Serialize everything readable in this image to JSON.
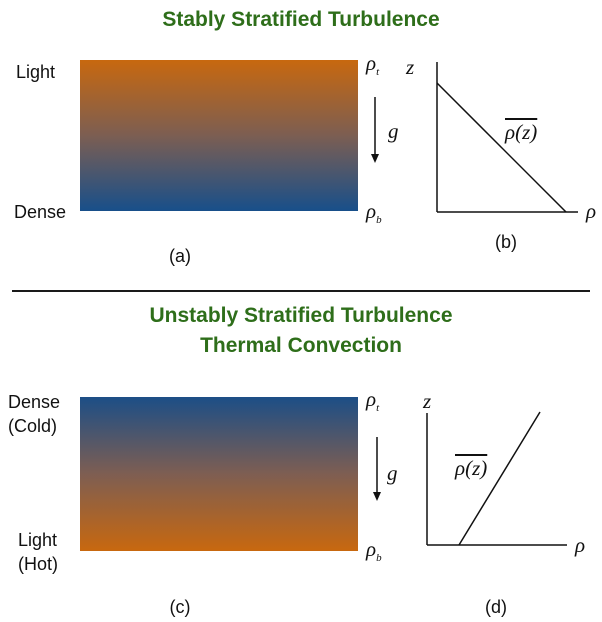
{
  "top_section": {
    "title": "Stably Stratified Turbulence",
    "box_top_label": "Light",
    "box_bottom_label": "Dense",
    "panel_a_label": "(a)",
    "panel_b_label": "(b)",
    "rho_top": "ρ",
    "rho_top_sub": "t",
    "rho_bottom": "ρ",
    "rho_bottom_sub": "b",
    "gravity_label": "g",
    "axis_z": "z",
    "axis_rho": "ρ",
    "curve_label": "ρ(z)"
  },
  "bottom_section": {
    "title_line1": "Unstably Stratified Turbulence",
    "title_line2": "Thermal Convection",
    "box_top_label_1": "Dense",
    "box_top_label_2": "(Cold)",
    "box_bottom_label_1": "Light",
    "box_bottom_label_2": "(Hot)",
    "panel_c_label": "(c)",
    "panel_d_label": "(d)",
    "rho_top": "ρ",
    "rho_top_sub": "t",
    "rho_bottom": "ρ",
    "rho_bottom_sub": "b",
    "gravity_label": "g",
    "axis_z": "z",
    "axis_rho": "ρ",
    "curve_label": "ρ(z)"
  },
  "colors": {
    "title_green": "#2e6e1a",
    "orange": "#c8680f",
    "blue": "#184f8a"
  }
}
